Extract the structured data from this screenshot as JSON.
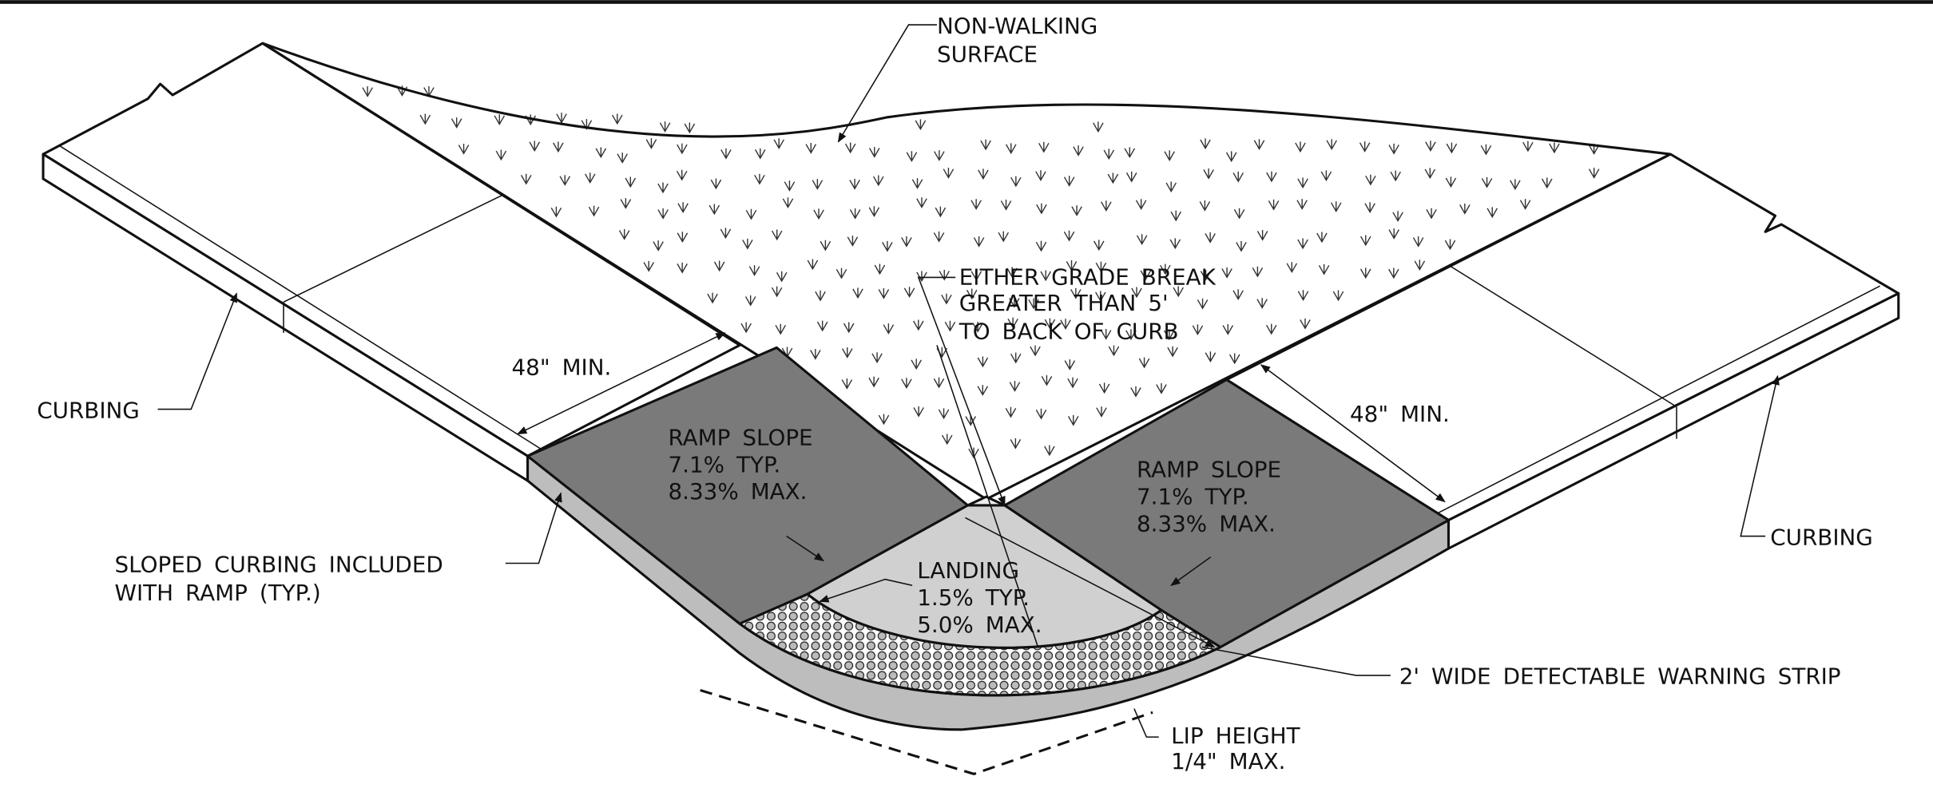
{
  "annotations": {
    "non_walking_surface": [
      "NON-WALKING",
      "SURFACE"
    ],
    "grade_break": [
      "EITHER GRADE BREAK",
      "GREATER THAN 5'",
      "TO BACK OF CURB"
    ],
    "min_width_left": "48\" MIN.",
    "min_width_right": "48\" MIN.",
    "curbing_left": "CURBING",
    "curbing_right": "CURBING",
    "ramp_left": [
      "RAMP SLOPE",
      "7.1% TYP.",
      "8.33% MAX."
    ],
    "ramp_right": [
      "RAMP SLOPE",
      "7.1% TYP.",
      "8.33% MAX."
    ],
    "landing": [
      "LANDING",
      "1.5% TYP.",
      "5.0% MAX."
    ],
    "sloped_curbing": [
      "SLOPED CURBING INCLUDED",
      "WITH RAMP (TYP.)"
    ],
    "warning_strip": "2' WIDE DETECTABLE WARNING STRIP",
    "lip_height": [
      "LIP HEIGHT",
      "1/4\" MAX."
    ]
  }
}
